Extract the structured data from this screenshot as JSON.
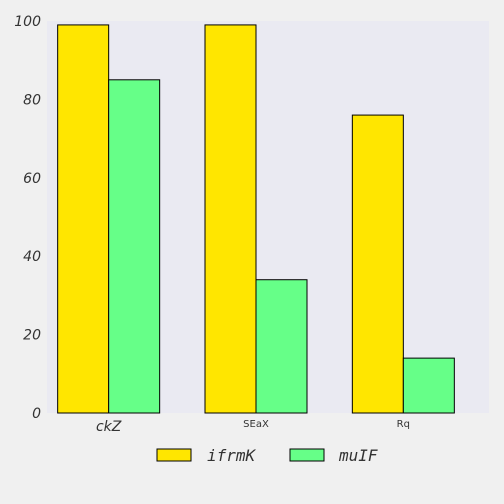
{
  "chart_data": {
    "type": "bar",
    "categories": [
      "ckZ",
      "SEaX",
      "Rq"
    ],
    "series": [
      {
        "name": "ifrmK",
        "values": [
          99,
          99,
          76
        ],
        "color": "#ffe600"
      },
      {
        "name": "muIF",
        "values": [
          85,
          34,
          14
        ],
        "color": "#66ff88"
      }
    ],
    "ylim": [
      0,
      100
    ],
    "yticks": [
      0,
      20,
      40,
      60,
      80,
      100
    ],
    "grid": false,
    "legend_position": "bottom-center",
    "plot_background": "#eaeaf2",
    "page_background": "#f0f0f0",
    "bar_edge_color": "#000000"
  }
}
